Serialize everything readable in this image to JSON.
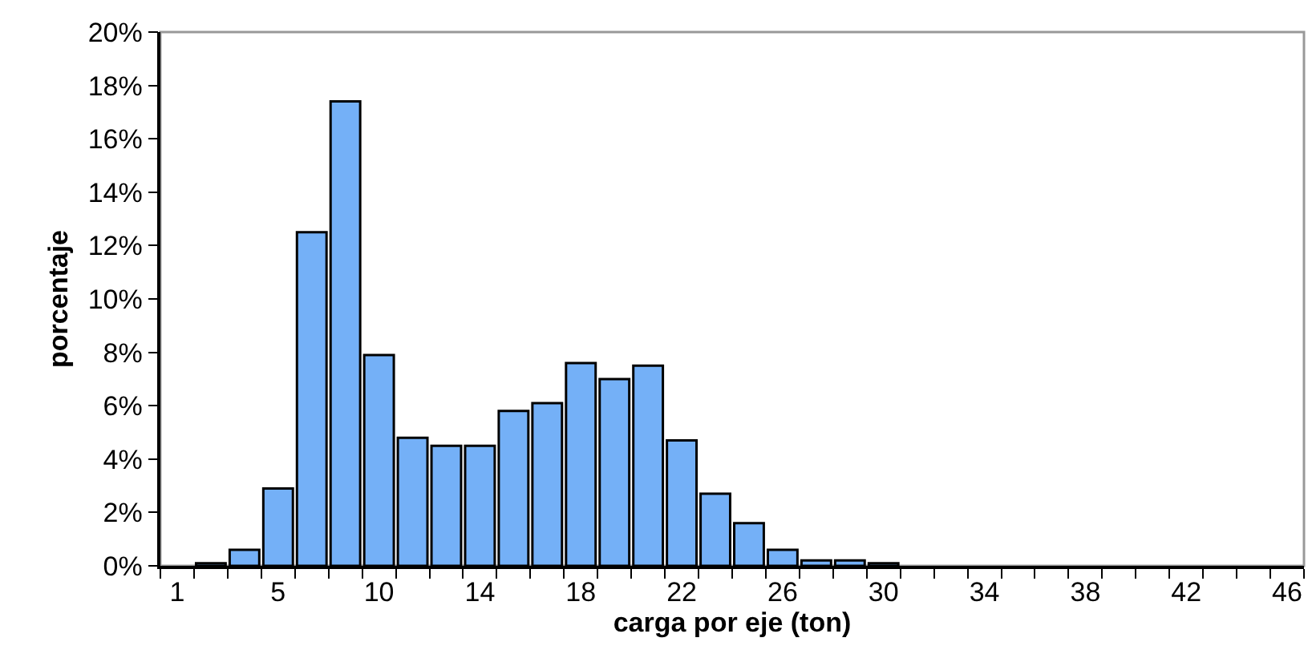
{
  "chart_data": {
    "type": "bar",
    "xlabel": "carga por eje (ton)",
    "ylabel": "porcentaje",
    "categories": [
      "1",
      null,
      null,
      "5",
      null,
      null,
      "10",
      null,
      null,
      "14",
      null,
      null,
      "18",
      null,
      null,
      "22",
      null,
      null,
      "26",
      null,
      null,
      "30",
      null,
      null,
      "34",
      null,
      null,
      "38",
      null,
      null,
      "42",
      null,
      null,
      "46"
    ],
    "values": [
      null,
      0.1,
      0.6,
      2.9,
      12.5,
      17.4,
      7.9,
      4.8,
      4.5,
      4.5,
      5.8,
      6.1,
      7.6,
      7.0,
      7.5,
      4.7,
      2.7,
      1.6,
      0.6,
      0.2,
      0.2,
      0.1,
      null,
      null,
      null,
      null,
      null,
      null,
      null,
      null,
      null,
      null,
      null,
      null
    ],
    "color": "#74b0f7",
    "ylim": [
      0,
      20
    ],
    "yticks": [
      {
        "value": 0,
        "label": "0%"
      },
      {
        "value": 2,
        "label": "2%"
      },
      {
        "value": 4,
        "label": "4%"
      },
      {
        "value": 6,
        "label": "6%"
      },
      {
        "value": 8,
        "label": "8%"
      },
      {
        "value": 10,
        "label": "10%"
      },
      {
        "value": 12,
        "label": "12%"
      },
      {
        "value": 14,
        "label": "14%"
      },
      {
        "value": 16,
        "label": "16%"
      },
      {
        "value": 18,
        "label": "18%"
      },
      {
        "value": 20,
        "label": "20%"
      }
    ],
    "grid": false,
    "legend": false
  }
}
